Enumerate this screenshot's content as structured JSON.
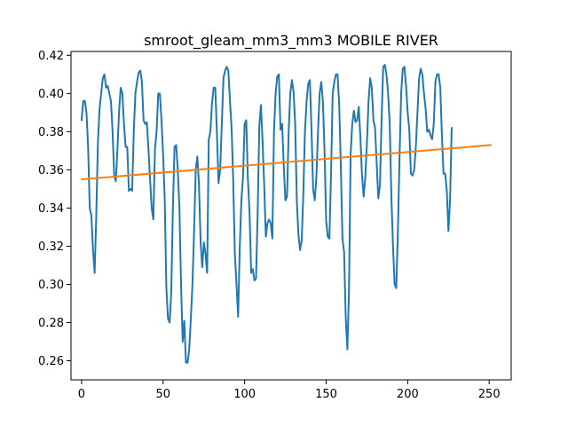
{
  "chart_data": {
    "type": "line",
    "title": "smroot_gleam_mm3_mm3 MOBILE RIVER",
    "xlabel": "",
    "ylabel": "",
    "xlim": [
      -6.5,
      263.5
    ],
    "ylim": [
      0.25,
      0.422
    ],
    "xticks": [
      0,
      50,
      100,
      150,
      200,
      250
    ],
    "yticks": [
      0.26,
      0.28,
      0.3,
      0.32,
      0.34,
      0.36,
      0.38,
      0.4,
      0.42
    ],
    "ytick_labels": [
      "0.26",
      "0.28",
      "0.30",
      "0.32",
      "0.34",
      "0.36",
      "0.38",
      "0.40",
      "0.42"
    ],
    "xtick_labels": [
      "0",
      "50",
      "100",
      "150",
      "200",
      "250"
    ],
    "grid": false,
    "series": [
      {
        "color": "#1f77b4",
        "points": [
          [
            0,
            0.386
          ],
          [
            1,
            0.396
          ],
          [
            2,
            0.396
          ],
          [
            3,
            0.39
          ],
          [
            4,
            0.372
          ],
          [
            5,
            0.34
          ],
          [
            6,
            0.336
          ],
          [
            7,
            0.318
          ],
          [
            8,
            0.306
          ],
          [
            9,
            0.336
          ],
          [
            10,
            0.374
          ],
          [
            11,
            0.392
          ],
          [
            12,
            0.4
          ],
          [
            13,
            0.408
          ],
          [
            14,
            0.41
          ],
          [
            15,
            0.403
          ],
          [
            16,
            0.404
          ],
          [
            17,
            0.4
          ],
          [
            18,
            0.396
          ],
          [
            19,
            0.38
          ],
          [
            20,
            0.357
          ],
          [
            21,
            0.354
          ],
          [
            22,
            0.371
          ],
          [
            23,
            0.391
          ],
          [
            24,
            0.403
          ],
          [
            25,
            0.4
          ],
          [
            26,
            0.384
          ],
          [
            27,
            0.372
          ],
          [
            28,
            0.372
          ],
          [
            29,
            0.349
          ],
          [
            30,
            0.35
          ],
          [
            31,
            0.349
          ],
          [
            32,
            0.38
          ],
          [
            33,
            0.4
          ],
          [
            34,
            0.406
          ],
          [
            35,
            0.411
          ],
          [
            36,
            0.412
          ],
          [
            37,
            0.406
          ],
          [
            38,
            0.386
          ],
          [
            39,
            0.384
          ],
          [
            40,
            0.385
          ],
          [
            41,
            0.371
          ],
          [
            42,
            0.355
          ],
          [
            43,
            0.34
          ],
          [
            44,
            0.334
          ],
          [
            45,
            0.371
          ],
          [
            46,
            0.38
          ],
          [
            47,
            0.4
          ],
          [
            48,
            0.4
          ],
          [
            49,
            0.386
          ],
          [
            50,
            0.368
          ],
          [
            51,
            0.344
          ],
          [
            52,
            0.298
          ],
          [
            53,
            0.282
          ],
          [
            54,
            0.28
          ],
          [
            55,
            0.296
          ],
          [
            56,
            0.34
          ],
          [
            57,
            0.372
          ],
          [
            58,
            0.373
          ],
          [
            59,
            0.36
          ],
          [
            60,
            0.34
          ],
          [
            61,
            0.3
          ],
          [
            62,
            0.27
          ],
          [
            63,
            0.281
          ],
          [
            64,
            0.259
          ],
          [
            65,
            0.259
          ],
          [
            66,
            0.266
          ],
          [
            67,
            0.282
          ],
          [
            68,
            0.3
          ],
          [
            69,
            0.328
          ],
          [
            70,
            0.36
          ],
          [
            71,
            0.367
          ],
          [
            72,
            0.352
          ],
          [
            73,
            0.322
          ],
          [
            74,
            0.309
          ],
          [
            75,
            0.322
          ],
          [
            76,
            0.316
          ],
          [
            77,
            0.306
          ],
          [
            78,
            0.376
          ],
          [
            79,
            0.38
          ],
          [
            80,
            0.395
          ],
          [
            81,
            0.403
          ],
          [
            82,
            0.403
          ],
          [
            83,
            0.379
          ],
          [
            84,
            0.353
          ],
          [
            85,
            0.36
          ],
          [
            86,
            0.384
          ],
          [
            87,
            0.408
          ],
          [
            88,
            0.412
          ],
          [
            89,
            0.414
          ],
          [
            90,
            0.412
          ],
          [
            91,
            0.396
          ],
          [
            92,
            0.382
          ],
          [
            93,
            0.354
          ],
          [
            94,
            0.316
          ],
          [
            95,
            0.3
          ],
          [
            96,
            0.283
          ],
          [
            97,
            0.319
          ],
          [
            98,
            0.344
          ],
          [
            99,
            0.356
          ],
          [
            100,
            0.384
          ],
          [
            101,
            0.386
          ],
          [
            102,
            0.355
          ],
          [
            103,
            0.338
          ],
          [
            104,
            0.306
          ],
          [
            105,
            0.308
          ],
          [
            106,
            0.302
          ],
          [
            107,
            0.303
          ],
          [
            108,
            0.338
          ],
          [
            109,
            0.383
          ],
          [
            110,
            0.394
          ],
          [
            111,
            0.375
          ],
          [
            112,
            0.352
          ],
          [
            113,
            0.325
          ],
          [
            114,
            0.332
          ],
          [
            115,
            0.334
          ],
          [
            116,
            0.332
          ],
          [
            117,
            0.324
          ],
          [
            118,
            0.38
          ],
          [
            119,
            0.4
          ],
          [
            120,
            0.409
          ],
          [
            121,
            0.41
          ],
          [
            122,
            0.381
          ],
          [
            123,
            0.384
          ],
          [
            124,
            0.362
          ],
          [
            125,
            0.344
          ],
          [
            126,
            0.346
          ],
          [
            127,
            0.38
          ],
          [
            128,
            0.4
          ],
          [
            129,
            0.407
          ],
          [
            130,
            0.401
          ],
          [
            131,
            0.384
          ],
          [
            132,
            0.344
          ],
          [
            133,
            0.326
          ],
          [
            134,
            0.318
          ],
          [
            135,
            0.323
          ],
          [
            136,
            0.348
          ],
          [
            137,
            0.38
          ],
          [
            138,
            0.396
          ],
          [
            139,
            0.405
          ],
          [
            140,
            0.407
          ],
          [
            141,
            0.382
          ],
          [
            142,
            0.35
          ],
          [
            143,
            0.344
          ],
          [
            144,
            0.356
          ],
          [
            145,
            0.38
          ],
          [
            146,
            0.4
          ],
          [
            147,
            0.406
          ],
          [
            148,
            0.396
          ],
          [
            149,
            0.37
          ],
          [
            150,
            0.333
          ],
          [
            151,
            0.325
          ],
          [
            152,
            0.324
          ],
          [
            153,
            0.358
          ],
          [
            154,
            0.4
          ],
          [
            155,
            0.406
          ],
          [
            156,
            0.41
          ],
          [
            157,
            0.41
          ],
          [
            158,
            0.394
          ],
          [
            159,
            0.362
          ],
          [
            160,
            0.324
          ],
          [
            161,
            0.317
          ],
          [
            162,
            0.283
          ],
          [
            163,
            0.266
          ],
          [
            164,
            0.296
          ],
          [
            165,
            0.368
          ],
          [
            166,
            0.384
          ],
          [
            167,
            0.391
          ],
          [
            168,
            0.385
          ],
          [
            169,
            0.386
          ],
          [
            170,
            0.393
          ],
          [
            171,
            0.377
          ],
          [
            172,
            0.357
          ],
          [
            173,
            0.346
          ],
          [
            174,
            0.356
          ],
          [
            175,
            0.374
          ],
          [
            176,
            0.396
          ],
          [
            177,
            0.408
          ],
          [
            178,
            0.403
          ],
          [
            179,
            0.386
          ],
          [
            180,
            0.382
          ],
          [
            181,
            0.363
          ],
          [
            182,
            0.345
          ],
          [
            183,
            0.352
          ],
          [
            184,
            0.387
          ],
          [
            185,
            0.414
          ],
          [
            186,
            0.415
          ],
          [
            187,
            0.41
          ],
          [
            188,
            0.4
          ],
          [
            189,
            0.384
          ],
          [
            190,
            0.346
          ],
          [
            191,
            0.32
          ],
          [
            192,
            0.3
          ],
          [
            193,
            0.298
          ],
          [
            194,
            0.328
          ],
          [
            195,
            0.366
          ],
          [
            196,
            0.4
          ],
          [
            197,
            0.413
          ],
          [
            198,
            0.414
          ],
          [
            199,
            0.404
          ],
          [
            200,
            0.39
          ],
          [
            201,
            0.381
          ],
          [
            202,
            0.358
          ],
          [
            203,
            0.357
          ],
          [
            204,
            0.36
          ],
          [
            205,
            0.372
          ],
          [
            206,
            0.39
          ],
          [
            207,
            0.408
          ],
          [
            208,
            0.413
          ],
          [
            209,
            0.41
          ],
          [
            210,
            0.4
          ],
          [
            211,
            0.392
          ],
          [
            212,
            0.38
          ],
          [
            213,
            0.381
          ],
          [
            214,
            0.378
          ],
          [
            215,
            0.376
          ],
          [
            216,
            0.384
          ],
          [
            217,
            0.406
          ],
          [
            218,
            0.41
          ],
          [
            219,
            0.41
          ],
          [
            220,
            0.403
          ],
          [
            221,
            0.378
          ],
          [
            222,
            0.358
          ],
          [
            223,
            0.358
          ],
          [
            224,
            0.349
          ],
          [
            225,
            0.328
          ],
          [
            226,
            0.344
          ],
          [
            227,
            0.382
          ]
        ]
      },
      {
        "color": "#ff7f0e",
        "points": [
          [
            0,
            0.355
          ],
          [
            251,
            0.373
          ]
        ]
      }
    ]
  }
}
